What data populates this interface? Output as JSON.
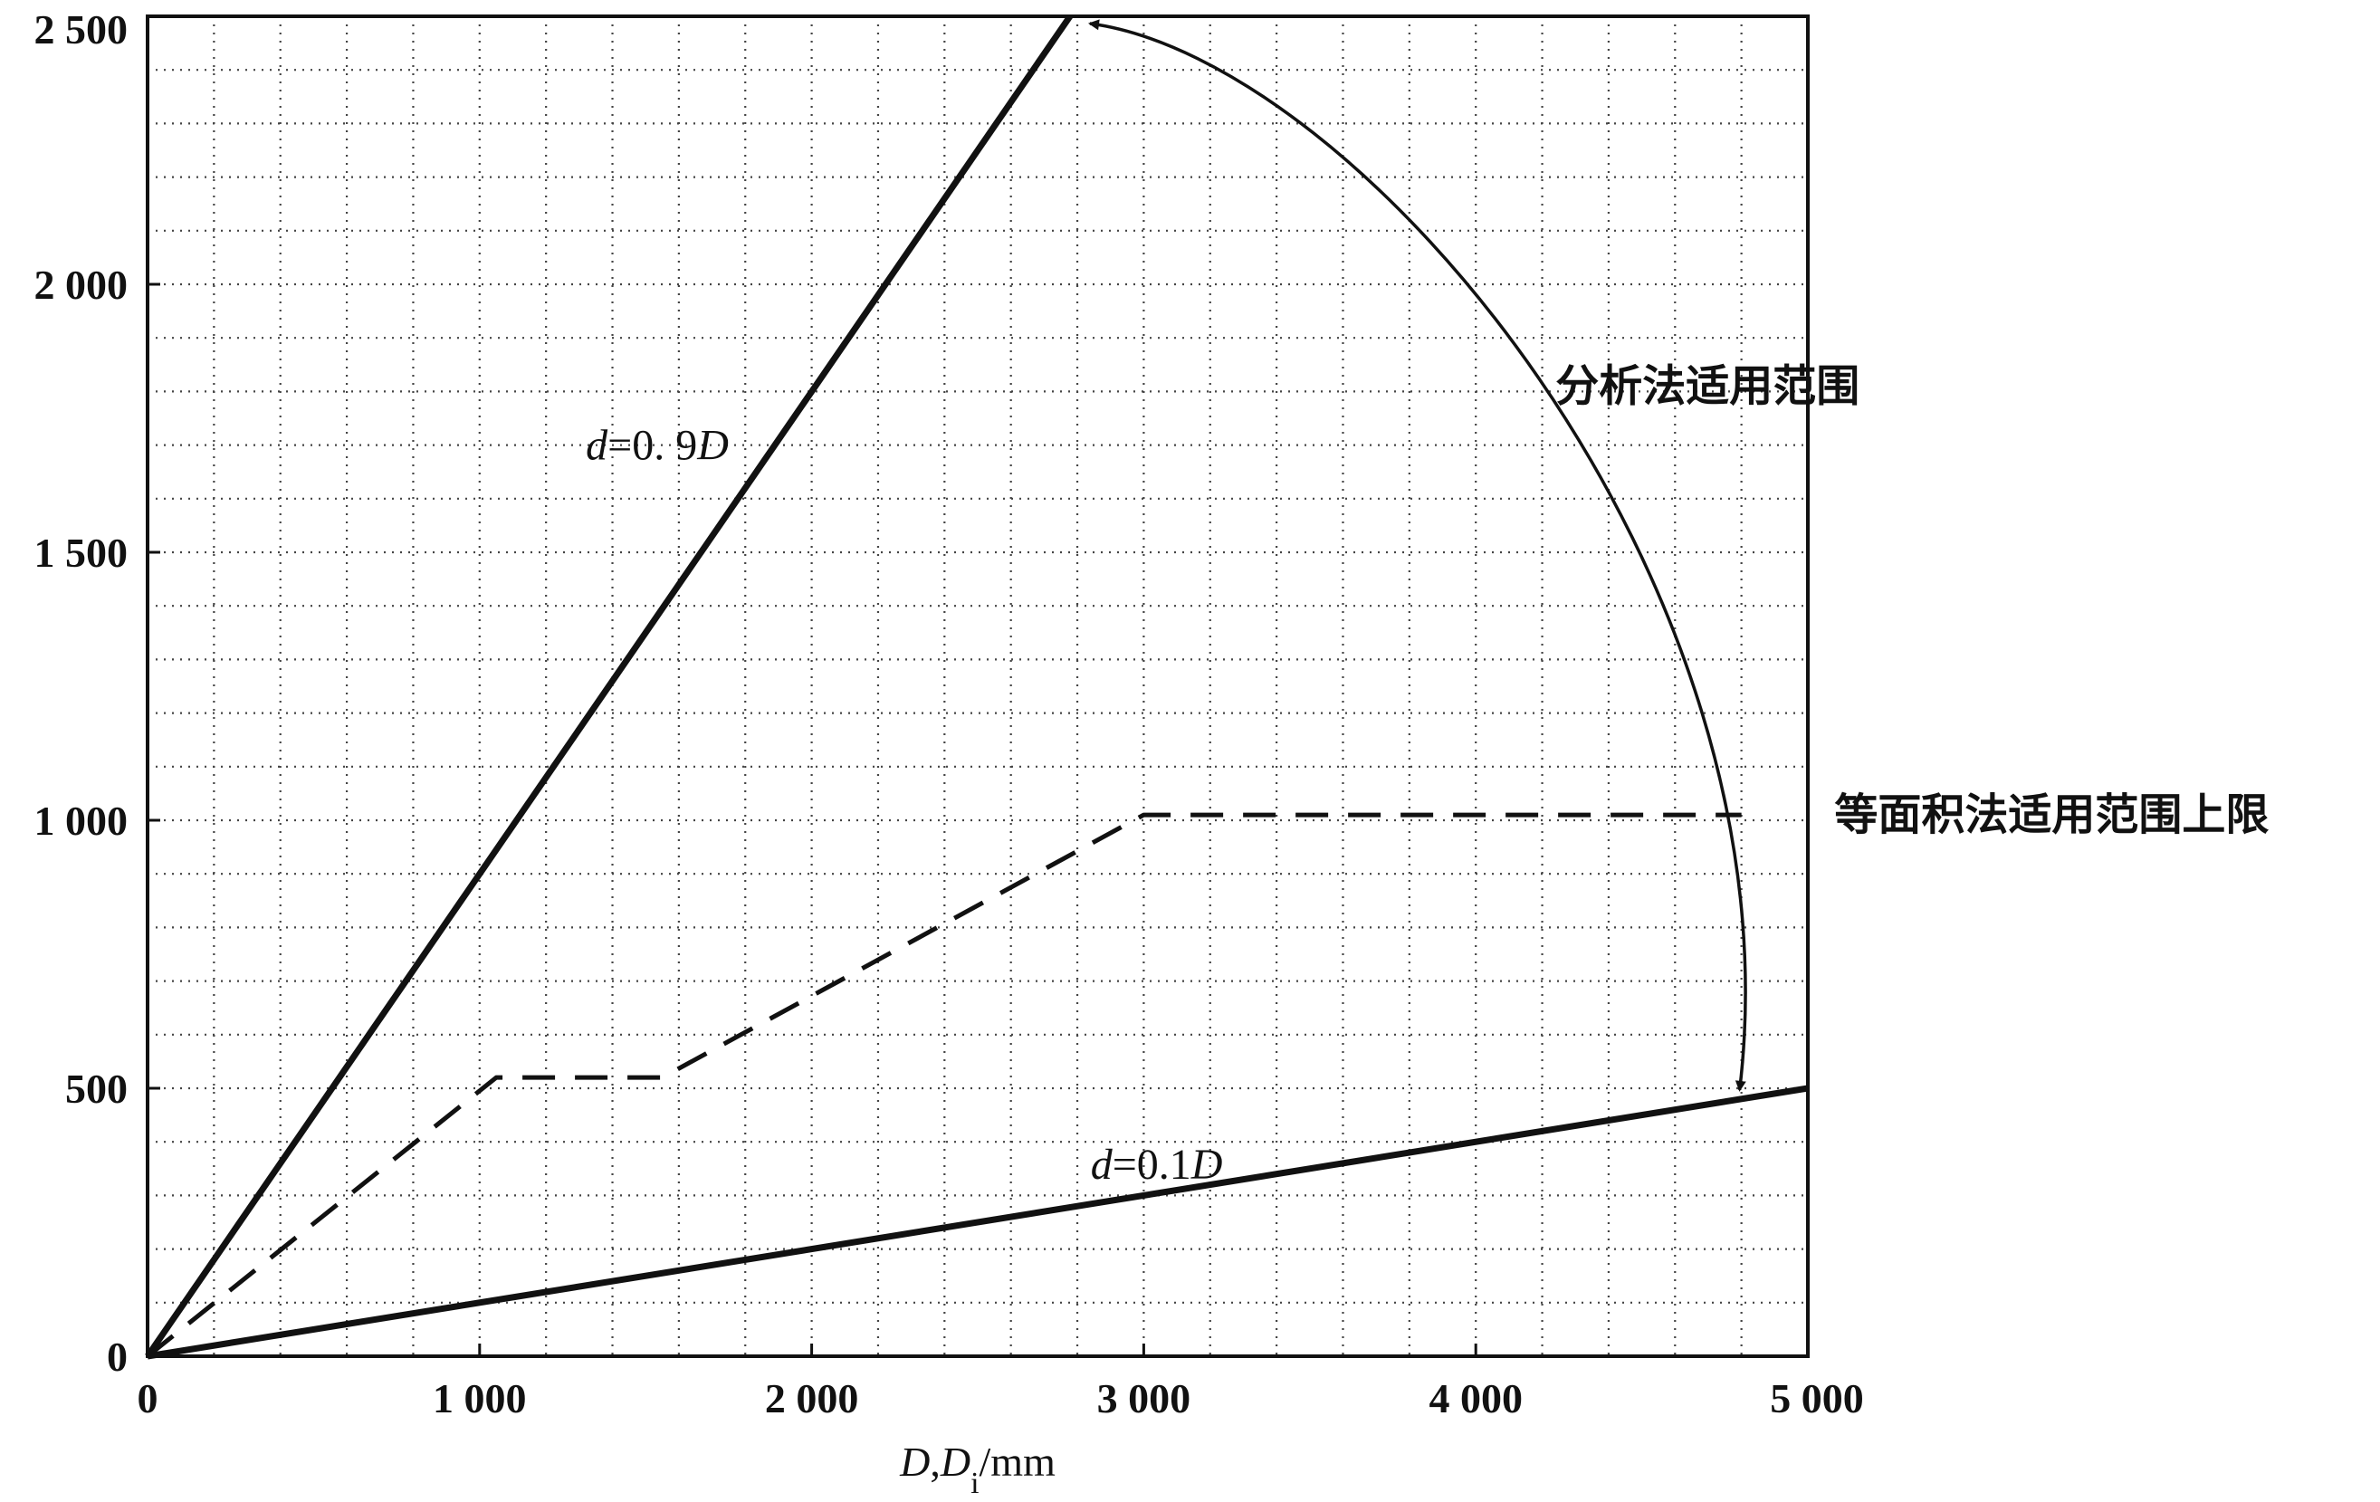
{
  "chart_data": {
    "type": "line",
    "title": "",
    "xlabel": {
      "parts": [
        {
          "text": "D",
          "italic": true,
          "sub": false
        },
        {
          "text": ",",
          "italic": false,
          "sub": false
        },
        {
          "text": "D",
          "italic": true,
          "sub": false
        },
        {
          "text": "i",
          "italic": false,
          "sub": true
        },
        {
          "text": "/mm",
          "italic": false,
          "sub": false
        }
      ]
    },
    "ylabel": "",
    "xlim": [
      0,
      5000
    ],
    "ylim": [
      0,
      2500
    ],
    "x_ticks": [
      0,
      1000,
      2000,
      3000,
      4000,
      5000
    ],
    "x_tick_labels": [
      "0",
      "1 000",
      "2 000",
      "3 000",
      "4 000",
      "5 000"
    ],
    "y_ticks": [
      0,
      500,
      1000,
      1500,
      2000,
      2500
    ],
    "y_tick_labels": [
      "0",
      "500",
      "1 000",
      "1 500",
      "2 000",
      "2 500"
    ],
    "grid": true,
    "grid_style": "dotted",
    "grid_step_x": 200,
    "grid_step_y": 100,
    "series": [
      {
        "label_parts": [
          {
            "text": "d",
            "italic": true
          },
          {
            "text": "=0. 9",
            "italic": false
          },
          {
            "text": "D",
            "italic": true
          }
        ],
        "style": "solid",
        "x": [
          0,
          2778
        ],
        "y": [
          0,
          2500
        ]
      },
      {
        "label_parts": [
          {
            "text": "d",
            "italic": true
          },
          {
            "text": "=0.1",
            "italic": false
          },
          {
            "text": "D",
            "italic": true
          }
        ],
        "style": "solid",
        "x": [
          0,
          5000
        ],
        "y": [
          0,
          500
        ]
      },
      {
        "style": "dashed",
        "x": [
          0,
          1050,
          1550,
          3000,
          4800
        ],
        "y": [
          0,
          520,
          520,
          1010,
          1010
        ]
      }
    ],
    "annotations": [
      {
        "text": "分析法适用范围",
        "style": "double-arrow-arc",
        "from": [
          2778,
          2500
        ],
        "to": [
          4800,
          480
        ]
      },
      {
        "text": "等面积法适用范围上限",
        "refers_to_y": 1010
      }
    ],
    "color": "#111111"
  }
}
